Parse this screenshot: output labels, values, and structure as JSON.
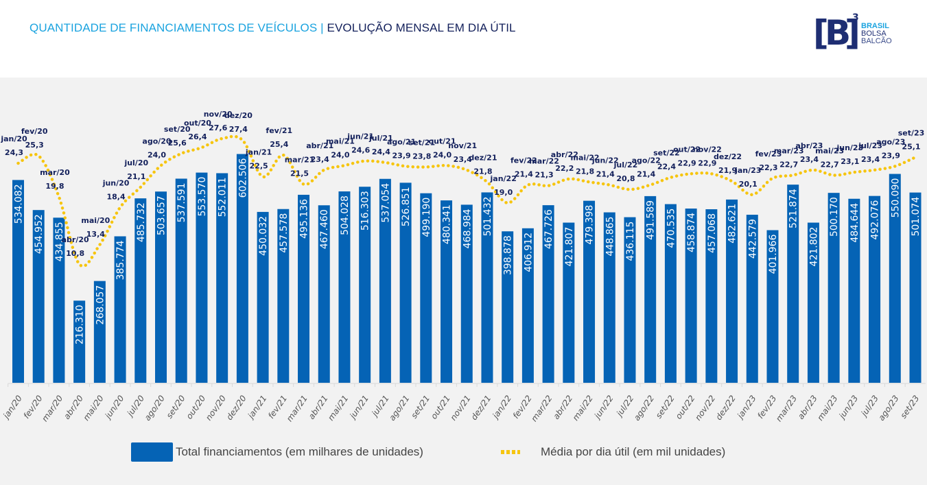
{
  "header": {
    "title_part1": "QUANTIDADE DE FINANCIAMENTOS DE VEÍCULOS",
    "separator": "|",
    "title_part2": "EVOLUÇÃO MENSAL EM DIA ÚTIL",
    "logo": {
      "mark": "B",
      "superscript": "3",
      "line1": "BRASIL",
      "line2": "BOLSA",
      "line3": "BALCÃO"
    }
  },
  "colors": {
    "bar": "#0563b5",
    "line": "#f6c510",
    "title_accent": "#1aa3df",
    "title_dark": "#13205b",
    "panel_bg": "#f2f2f2"
  },
  "legend": {
    "bar_label": "Total financiamentos (em milhares de unidades)",
    "line_label": "Média por dia útil (em mil unidades)"
  },
  "chart_data": {
    "type": "bar",
    "title": "QUANTIDADE DE FINANCIAMENTOS DE VEÍCULOS | EVOLUÇÃO MENSAL EM DIA ÚTIL",
    "xlabel": "",
    "ylabel": "",
    "grid": false,
    "legend_position": "bottom",
    "categories": [
      "jan/20",
      "fev/20",
      "mar/20",
      "abr/20",
      "mai/20",
      "jun/20",
      "jul/20",
      "ago/20",
      "set/20",
      "out/20",
      "nov/20",
      "dez/20",
      "jan/21",
      "fev/21",
      "mar/21",
      "abr/21",
      "mai/21",
      "jun/21",
      "jul/21",
      "ago/21",
      "set/21",
      "out/21",
      "nov/21",
      "dez/21",
      "jan/22",
      "fev/22",
      "mar/22",
      "abr/22",
      "mai/22",
      "jun/22",
      "jul/22",
      "ago/22",
      "set/22",
      "out/22",
      "nov/22",
      "dez/22",
      "jan/23",
      "fev/23",
      "mar/23",
      "abr/23",
      "mai/23",
      "jun/23",
      "jul/23",
      "ago/23",
      "set/23"
    ],
    "series": [
      {
        "name": "Total financiamentos (em milhares de unidades)",
        "type": "bar",
        "labels": [
          "534.082",
          "454.952",
          "434.855",
          "216.310",
          "268.057",
          "385.774",
          "485.732",
          "503.657",
          "537.591",
          "553.570",
          "552.011",
          "602.506",
          "450.032",
          "457.578",
          "495.136",
          "467.460",
          "504.028",
          "516.303",
          "537.054",
          "526.851",
          "499.190",
          "480.341",
          "468.984",
          "501.432",
          "398.878",
          "406.912",
          "467.726",
          "421.807",
          "479.398",
          "448.865",
          "436.115",
          "491.589",
          "470.535",
          "458.874",
          "457.068",
          "482.621",
          "442.579",
          "401.966",
          "521.874",
          "421.802",
          "500.170",
          "484.644",
          "492.076",
          "550.090",
          "501.074"
        ],
        "values": [
          534.082,
          454.952,
          434.855,
          216.31,
          268.057,
          385.774,
          485.732,
          503.657,
          537.591,
          553.57,
          552.011,
          602.506,
          450.032,
          457.578,
          495.136,
          467.46,
          504.028,
          516.303,
          537.054,
          526.851,
          499.19,
          480.341,
          468.984,
          501.432,
          398.878,
          406.912,
          467.726,
          421.807,
          479.398,
          448.865,
          436.115,
          491.589,
          470.535,
          458.874,
          457.068,
          482.621,
          442.579,
          401.966,
          521.874,
          421.802,
          500.17,
          484.644,
          492.076,
          550.09,
          501.074
        ]
      },
      {
        "name": "Média por dia útil (em mil unidades)",
        "type": "line",
        "labels": [
          "24,3",
          "25,3",
          "19,8",
          "10,8",
          "13,4",
          "18,4",
          "21,1",
          "24,0",
          "25,6",
          "26,4",
          "27,6",
          "27,4",
          "22,5",
          "25,4",
          "21,5",
          "23,4",
          "24,0",
          "24,6",
          "24,4",
          "23,9",
          "23,8",
          "24,0",
          "23,4",
          "21,8",
          "19,0",
          "21,4",
          "21,3",
          "22,2",
          "21,8",
          "21,4",
          "20,8",
          "21,4",
          "22,4",
          "22,9",
          "22,9",
          "21,9",
          "20,1",
          "22,3",
          "22,7",
          "23,4",
          "22,7",
          "23,1",
          "23,4",
          "23,9",
          "25,1"
        ],
        "values": [
          24.3,
          25.3,
          19.8,
          10.8,
          13.4,
          18.4,
          21.1,
          24.0,
          25.6,
          26.4,
          27.6,
          27.4,
          22.5,
          25.4,
          21.5,
          23.4,
          24.0,
          24.6,
          24.4,
          23.9,
          23.8,
          24.0,
          23.4,
          21.8,
          19.0,
          21.4,
          21.3,
          22.2,
          21.8,
          21.4,
          20.8,
          21.4,
          22.4,
          22.9,
          22.9,
          21.9,
          20.1,
          22.3,
          22.7,
          23.4,
          22.7,
          23.1,
          23.4,
          23.9,
          25.1
        ]
      }
    ],
    "ylim_bars": [
      0,
      650
    ],
    "ylim_line": [
      0,
      30
    ]
  }
}
